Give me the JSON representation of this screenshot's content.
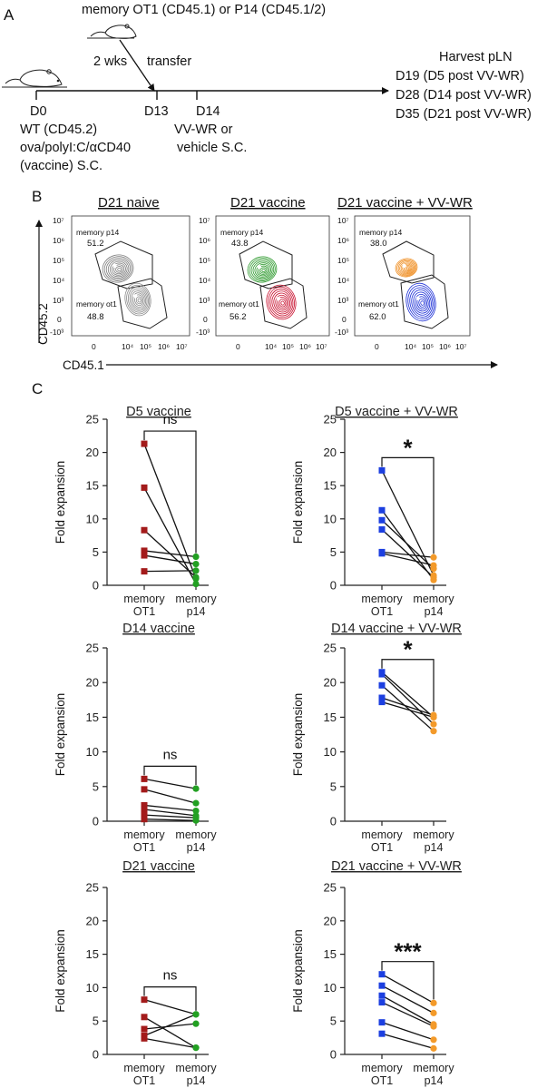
{
  "panel_a": {
    "letter": "A",
    "memory_donor_label": "memory OT1 (CD45.1) or P14 (CD45.1/2)",
    "interval_label": "2 wks",
    "transfer_label": "transfer",
    "days": {
      "d0": "D0",
      "d13": "D13",
      "d14": "D14"
    },
    "d0_lines": [
      "WT (CD45.2)",
      "ova/polyI:C/αCD40",
      "(vaccine) S.C."
    ],
    "d14_lines": [
      "VV-WR or",
      "vehicle S.C."
    ],
    "harvest_lines": [
      "Harvest pLN",
      "D19 (D5 post VV-WR)",
      "D28 (D14 post VV-WR)",
      "D35 (D21 post VV-WR)"
    ]
  },
  "panel_b": {
    "letter": "B",
    "y_axis_label": "CD45.2",
    "x_axis_label": "CD45.1",
    "y_ticks": [
      "10⁷",
      "10⁶",
      "10⁵",
      "10⁴",
      "10³",
      "0",
      "-10³"
    ],
    "x_ticks": [
      "0",
      "10⁴",
      "10⁵",
      "10⁶",
      "10⁷"
    ],
    "plots": [
      {
        "title": "D21 naive",
        "upper_gate": "memory p14",
        "upper_value": "51.2",
        "lower_gate": "memory ot1",
        "lower_value": "48.8",
        "upper_color": "#7d7d7d",
        "lower_color": "#8c8c8c"
      },
      {
        "title": "D21 vaccine",
        "upper_gate": "memory p14",
        "upper_value": "43.8",
        "lower_gate": "memory ot1",
        "lower_value": "56.2",
        "upper_color": "#2e9a2e",
        "lower_color": "#c8102e"
      },
      {
        "title": "D21 vaccine + VV-WR",
        "upper_gate": "memory p14",
        "upper_value": "38.0",
        "lower_gate": "memory ot1",
        "lower_value": "62.0",
        "upper_color": "#f0922a",
        "lower_color": "#1c2fd6"
      }
    ]
  },
  "panel_c": {
    "letter": "C"
  },
  "chart_data": [
    {
      "type": "line",
      "title": "D5 vaccine",
      "ylabel": "Fold expansion",
      "categories": [
        "memory OT1",
        "memory p14"
      ],
      "ylim": [
        0,
        25
      ],
      "yticks": [
        0,
        5,
        10,
        15,
        20,
        25
      ],
      "significance": "ns",
      "pairs": [
        [
          21.3,
          1.0
        ],
        [
          14.7,
          0.2
        ],
        [
          8.3,
          1.2
        ],
        [
          5.2,
          4.3
        ],
        [
          4.5,
          3.2
        ],
        [
          2.1,
          2.2
        ]
      ],
      "ot1_color": "#a31b1b",
      "p14_color": "#22a022"
    },
    {
      "type": "line",
      "title": "D5 vaccine + VV-WR",
      "ylabel": "Fold expansion",
      "categories": [
        "memory OT1",
        "memory p14"
      ],
      "ylim": [
        0,
        25
      ],
      "yticks": [
        0,
        5,
        10,
        15,
        20,
        25
      ],
      "significance": "*",
      "pairs": [
        [
          17.3,
          1.5
        ],
        [
          11.3,
          0.8
        ],
        [
          9.8,
          2.5
        ],
        [
          8.4,
          1.2
        ],
        [
          5.0,
          4.2
        ],
        [
          4.8,
          3.0
        ]
      ],
      "ot1_color": "#1c3fe0",
      "p14_color": "#f39a2a"
    },
    {
      "type": "line",
      "title": "D14 vaccine",
      "ylabel": "Fold expansion",
      "categories": [
        "memory OT1",
        "memory p14"
      ],
      "ylim": [
        0,
        25
      ],
      "yticks": [
        0,
        5,
        10,
        15,
        20,
        25
      ],
      "significance": "ns",
      "pairs": [
        [
          6.1,
          4.7
        ],
        [
          4.6,
          2.6
        ],
        [
          2.3,
          1.5
        ],
        [
          1.7,
          0.8
        ],
        [
          0.9,
          0.5
        ],
        [
          0.3,
          0.1
        ]
      ],
      "ot1_color": "#a31b1b",
      "p14_color": "#22a022"
    },
    {
      "type": "line",
      "title": "D14 vaccine + VV-WR",
      "ylabel": "Fold expansion",
      "categories": [
        "memory OT1",
        "memory p14"
      ],
      "ylim": [
        0,
        25
      ],
      "yticks": [
        0,
        5,
        10,
        15,
        20,
        25
      ],
      "significance": "*",
      "pairs": [
        [
          21.5,
          15.0
        ],
        [
          21.2,
          14.0
        ],
        [
          19.6,
          13.0
        ],
        [
          17.8,
          15.3
        ],
        [
          17.2,
          15.0
        ]
      ],
      "ot1_color": "#1c3fe0",
      "p14_color": "#f39a2a"
    },
    {
      "type": "line",
      "title": "D21 vaccine",
      "ylabel": "Fold expansion",
      "categories": [
        "memory OT1",
        "memory p14"
      ],
      "ylim": [
        0,
        25
      ],
      "yticks": [
        0,
        5,
        10,
        15,
        20,
        25
      ],
      "significance": "ns",
      "pairs": [
        [
          8.2,
          6.0
        ],
        [
          5.6,
          1.0
        ],
        [
          3.8,
          4.6
        ],
        [
          2.8,
          6.0
        ],
        [
          2.4,
          1.0
        ]
      ],
      "ot1_color": "#a31b1b",
      "p14_color": "#22a022"
    },
    {
      "type": "line",
      "title": "D21 vaccine + VV-WR",
      "ylabel": "Fold expansion",
      "categories": [
        "memory OT1",
        "memory p14"
      ],
      "ylim": [
        0,
        25
      ],
      "yticks": [
        0,
        5,
        10,
        15,
        20,
        25
      ],
      "significance": "***",
      "pairs": [
        [
          12.0,
          7.7
        ],
        [
          10.3,
          6.2
        ],
        [
          8.8,
          4.5
        ],
        [
          7.8,
          4.2
        ],
        [
          4.8,
          2.2
        ],
        [
          3.1,
          0.9
        ]
      ],
      "ot1_color": "#1c3fe0",
      "p14_color": "#f39a2a"
    }
  ]
}
